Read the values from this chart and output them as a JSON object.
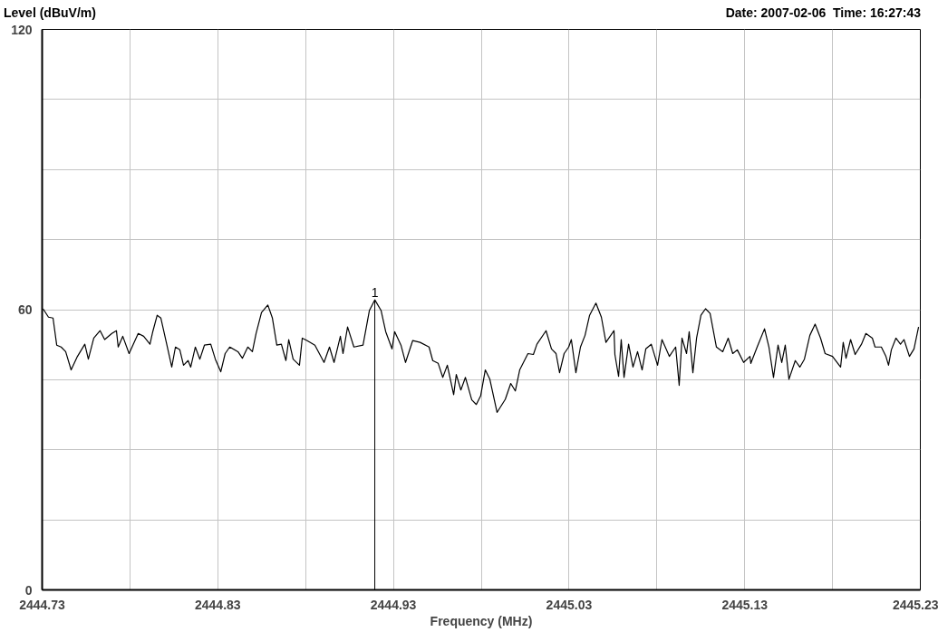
{
  "chart_data": {
    "type": "line",
    "ylabel": "Level (dBuV/m)",
    "xlabel": "Frequency (MHz)",
    "annotations": [
      "Date: 2007-02-06  Time: 16:27:43",
      {
        "text": "1",
        "x": 2444.9194,
        "y": 62.1
      }
    ],
    "xlim": [
      2444.73,
      2445.23
    ],
    "ylim": [
      0,
      120
    ],
    "xticks": [
      2444.73,
      {
        "value": 2444.78,
        "label": null
      },
      2444.83,
      {
        "value": 2444.88,
        "label": null
      },
      2444.93,
      {
        "value": 2444.98,
        "label": null
      },
      2445.03,
      {
        "value": 2445.08,
        "label": null
      },
      2445.13,
      {
        "value": 2445.18,
        "label": null
      },
      2445.23
    ],
    "yticks": [
      0,
      {
        "value": 15,
        "label": null
      },
      {
        "value": 30,
        "label": null
      },
      {
        "value": 45,
        "label": null
      },
      60,
      {
        "value": 75,
        "label": null
      },
      {
        "value": 90,
        "label": null
      },
      {
        "value": 105,
        "label": null
      },
      120
    ],
    "grid": true,
    "series": [
      {
        "color": "#000000",
        "x": [
          2444.7305,
          2444.7336,
          2444.7362,
          2444.7383,
          2444.7408,
          2444.7434,
          2444.7465,
          2444.7501,
          2444.7543,
          2444.7563,
          2444.7594,
          2444.763,
          2444.7656,
          2444.7697,
          2444.7723,
          2444.7733,
          2444.7759,
          2444.7795,
          2444.7847,
          2444.7878,
          2444.7914,
          2444.793,
          2444.7955,
          2444.7976,
          2444.8007,
          2444.8038,
          2444.8059,
          2444.8084,
          2444.8105,
          2444.8131,
          2444.8146,
          2444.8172,
          2444.8198,
          2444.8224,
          2444.826,
          2444.8286,
          2444.8317,
          2444.8342,
          2444.8368,
          2444.8415,
          2444.844,
          2444.8471,
          2444.8497,
          2444.8518,
          2444.8549,
          2444.8585,
          2444.8611,
          2444.8636,
          2444.8662,
          2444.8688,
          2444.8704,
          2444.8729,
          2444.8765,
          2444.8781,
          2444.8807,
          2444.8853,
          2444.8905,
          2444.8936,
          2444.8962,
          2444.8998,
          2444.9013,
          2444.9039,
          2444.9075,
          2444.9127,
          2444.9163,
          2444.9194,
          2444.923,
          2444.9256,
          2444.9292,
          2444.9307,
          2444.9343,
          2444.9369,
          2444.941,
          2444.9452,
          2444.9503,
          2444.9524,
          2444.9555,
          2444.9581,
          2444.9607,
          2444.9643,
          2444.9658,
          2444.9684,
          2444.971,
          2444.9746,
          2444.9772,
          2444.9797,
          2444.9823,
          2444.9849,
          2444.989,
          2444.9937,
          2444.9968,
          2444.9994,
          2445.0019,
          2445.0066,
          2445.0097,
          2445.0117,
          2445.0169,
          2445.02,
          2445.0226,
          2445.0246,
          2445.0272,
          2445.0298,
          2445.0313,
          2445.0339,
          2445.0365,
          2445.0391,
          2445.0417,
          2445.0453,
          2445.0484,
          2445.051,
          2445.0556,
          2445.0561,
          2445.0582,
          2445.0597,
          2445.0613,
          2445.0639,
          2445.0664,
          2445.069,
          2445.0716,
          2445.0737,
          2445.0768,
          2445.0804,
          2445.0829,
          2445.0871,
          2445.0907,
          2445.0927,
          2445.0943,
          2445.0969,
          2445.0984,
          2445.1005,
          2445.1026,
          2445.1051,
          2445.1077,
          2445.1103,
          2445.1139,
          2445.1175,
          2445.1206,
          2445.1232,
          2445.1258,
          2445.1294,
          2445.133,
          2445.1335,
          2445.1371,
          2445.1413,
          2445.1438,
          2445.1464,
          2445.149,
          2445.1511,
          2445.1531,
          2445.1552,
          2445.1588,
          2445.1614,
          2445.164,
          2445.1671,
          2445.1701,
          2445.1732,
          2445.1758,
          2445.18,
          2445.1846,
          2445.1861,
          2445.1877,
          2445.1903,
          2445.1929,
          2445.1965,
          2445.199,
          2445.2027,
          2445.2042,
          2445.2078,
          2445.2104,
          2445.2119,
          2445.2135,
          2445.2161,
          2445.2187,
          2445.2207,
          2445.2238,
          2445.2264,
          2445.229
        ],
        "values": [
          60.2,
          58.4,
          58.2,
          52.4,
          52,
          51,
          47.1,
          50,
          52.6,
          49.4,
          53.9,
          55.5,
          53.6,
          54.9,
          55.5,
          52,
          54.3,
          50.6,
          54.9,
          54.3,
          52.6,
          55.3,
          58.8,
          58.2,
          53,
          47.7,
          52,
          51.4,
          48.1,
          49.1,
          47.7,
          52,
          49.4,
          52.4,
          52.6,
          49.4,
          46.7,
          50.6,
          52,
          51,
          49.6,
          52,
          51,
          54.9,
          59.4,
          61,
          58.2,
          52.4,
          52.6,
          49.1,
          53.6,
          49.4,
          48.1,
          53.9,
          53.4,
          52.4,
          48.7,
          52,
          48.7,
          54.3,
          50.6,
          56.3,
          52,
          52.4,
          59.8,
          62.1,
          59.8,
          55.3,
          51.6,
          55.3,
          52.4,
          48.7,
          53.4,
          53,
          52,
          49.1,
          48.5,
          45.5,
          48.1,
          41.8,
          46.1,
          42.8,
          45.5,
          40.7,
          39.7,
          41.6,
          47.1,
          45.1,
          38,
          40.8,
          44.2,
          42.6,
          47.1,
          50.6,
          50.4,
          52.6,
          55.5,
          51.6,
          50.6,
          46.5,
          50.6,
          52,
          53.6,
          46.5,
          52,
          54.5,
          58.8,
          61.4,
          58.4,
          53,
          55.5,
          50.4,
          45.7,
          53.6,
          45.5,
          52.6,
          47.7,
          51,
          47.1,
          51.6,
          52.6,
          48.1,
          53.6,
          50,
          52,
          43.8,
          53.9,
          50.6,
          55.3,
          46.5,
          53.9,
          58.8,
          60.2,
          59.2,
          52,
          51,
          53.9,
          50.6,
          51.4,
          48.7,
          50,
          48.5,
          52,
          55.9,
          52,
          45.5,
          52.4,
          48.7,
          52.4,
          45.1,
          49.1,
          47.7,
          49.4,
          54.5,
          56.9,
          53.9,
          50.6,
          50,
          47.7,
          53,
          49.6,
          53.6,
          50.4,
          52.6,
          54.9,
          53.9,
          52,
          52,
          50,
          48.1,
          51.4,
          53.9,
          52.6,
          53.6,
          50,
          51.6,
          56.3
        ]
      }
    ]
  }
}
